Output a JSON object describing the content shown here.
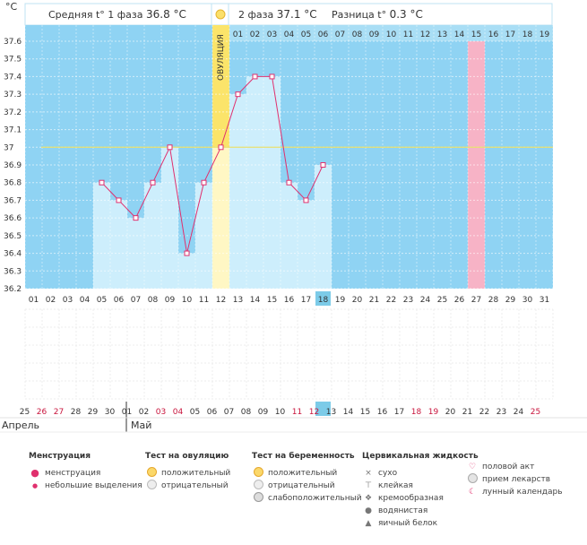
{
  "header": {
    "phase1_label": "Средняя t° 1 фаза",
    "phase1_value": "36.8 °C",
    "phase2_label": "2 фаза",
    "phase2_value": "37.1 °C",
    "diff_label": "Разница t°",
    "diff_value": "0.3 °C",
    "unit": "°C",
    "ovulation_label": "ОВУЛЯЦИЯ"
  },
  "chart_data": {
    "type": "line",
    "ylabel": "°C",
    "ylim": [
      36.2,
      37.6
    ],
    "yticks": [
      "37.6",
      "37.5",
      "37.4",
      "37.3",
      "37.2",
      "37.1",
      "37",
      "36.9",
      "36.8",
      "36.7",
      "36.6",
      "36.5",
      "36.4",
      "36.3",
      "36.2"
    ],
    "coverline": 37.0,
    "cycle_days": [
      "01",
      "02",
      "03",
      "04",
      "05",
      "06",
      "07",
      "08",
      "09",
      "10",
      "11",
      "12",
      "13",
      "14",
      "15",
      "16",
      "17",
      "18",
      "19",
      "20",
      "21",
      "22",
      "23",
      "24",
      "25",
      "26",
      "27",
      "28",
      "29",
      "30",
      "31"
    ],
    "phase2_top_labels": [
      "01",
      "02",
      "03",
      "04",
      "05",
      "06",
      "07",
      "08",
      "09",
      "10",
      "11",
      "12",
      "13",
      "14",
      "15",
      "16",
      "17",
      "18",
      "19"
    ],
    "ovulation_cycle_day": 12,
    "highlight_cycle_day": 27,
    "current_cycle_day": "18",
    "series": [
      {
        "cycle_day": 5,
        "temp": 36.8
      },
      {
        "cycle_day": 6,
        "temp": 36.7
      },
      {
        "cycle_day": 7,
        "temp": 36.6
      },
      {
        "cycle_day": 8,
        "temp": 36.8
      },
      {
        "cycle_day": 9,
        "temp": 37.0
      },
      {
        "cycle_day": 10,
        "temp": 36.4
      },
      {
        "cycle_day": 11,
        "temp": 36.8
      },
      {
        "cycle_day": 12,
        "temp": 37.0
      },
      {
        "cycle_day": 13,
        "temp": 37.3
      },
      {
        "cycle_day": 14,
        "temp": 37.4
      },
      {
        "cycle_day": 15,
        "temp": 37.4
      },
      {
        "cycle_day": 16,
        "temp": 36.8
      },
      {
        "cycle_day": 17,
        "temp": 36.7
      },
      {
        "cycle_day": 18,
        "temp": 36.9
      }
    ],
    "dates": [
      "25",
      "26",
      "27",
      "28",
      "29",
      "30",
      "01",
      "02",
      "03",
      "04",
      "05",
      "06",
      "07",
      "08",
      "09",
      "10",
      "11",
      "12",
      "13",
      "14",
      "15",
      "16",
      "17",
      "18",
      "19",
      "20",
      "21",
      "22",
      "23",
      "24",
      "25"
    ],
    "weekend_date_indices": [
      1,
      2,
      8,
      9,
      16,
      17,
      23,
      24,
      30
    ],
    "current_date_index": 17,
    "month_april": "Апрель",
    "month_may": "Май"
  },
  "legend": {
    "menstruation": {
      "title": "Менструация",
      "items": [
        "менструация",
        "небольшие выделения"
      ]
    },
    "ovulation_test": {
      "title": "Тест на овуляцию",
      "items": [
        "положительный",
        "отрицательный"
      ]
    },
    "pregnancy_test": {
      "title": "Тест на беременность",
      "items": [
        "положительный",
        "отрицательный",
        "слабоположительный"
      ]
    },
    "cervical": {
      "title": "Цервикальная жидкость",
      "items": [
        "сухо",
        "клейкая",
        "кремообразная",
        "водянистая",
        "яичный белок"
      ]
    },
    "other": {
      "items": [
        "половой акт",
        "прием лекарств",
        "лунный календарь"
      ]
    }
  },
  "colors": {
    "bg": "#8fd3f3",
    "bar": "#cdeefc",
    "ovulation": "#fbe46a",
    "highlight": "#f7b3c6",
    "line": "#e0306e",
    "coverline": "#e8e070",
    "current": "#7ccbe8"
  }
}
